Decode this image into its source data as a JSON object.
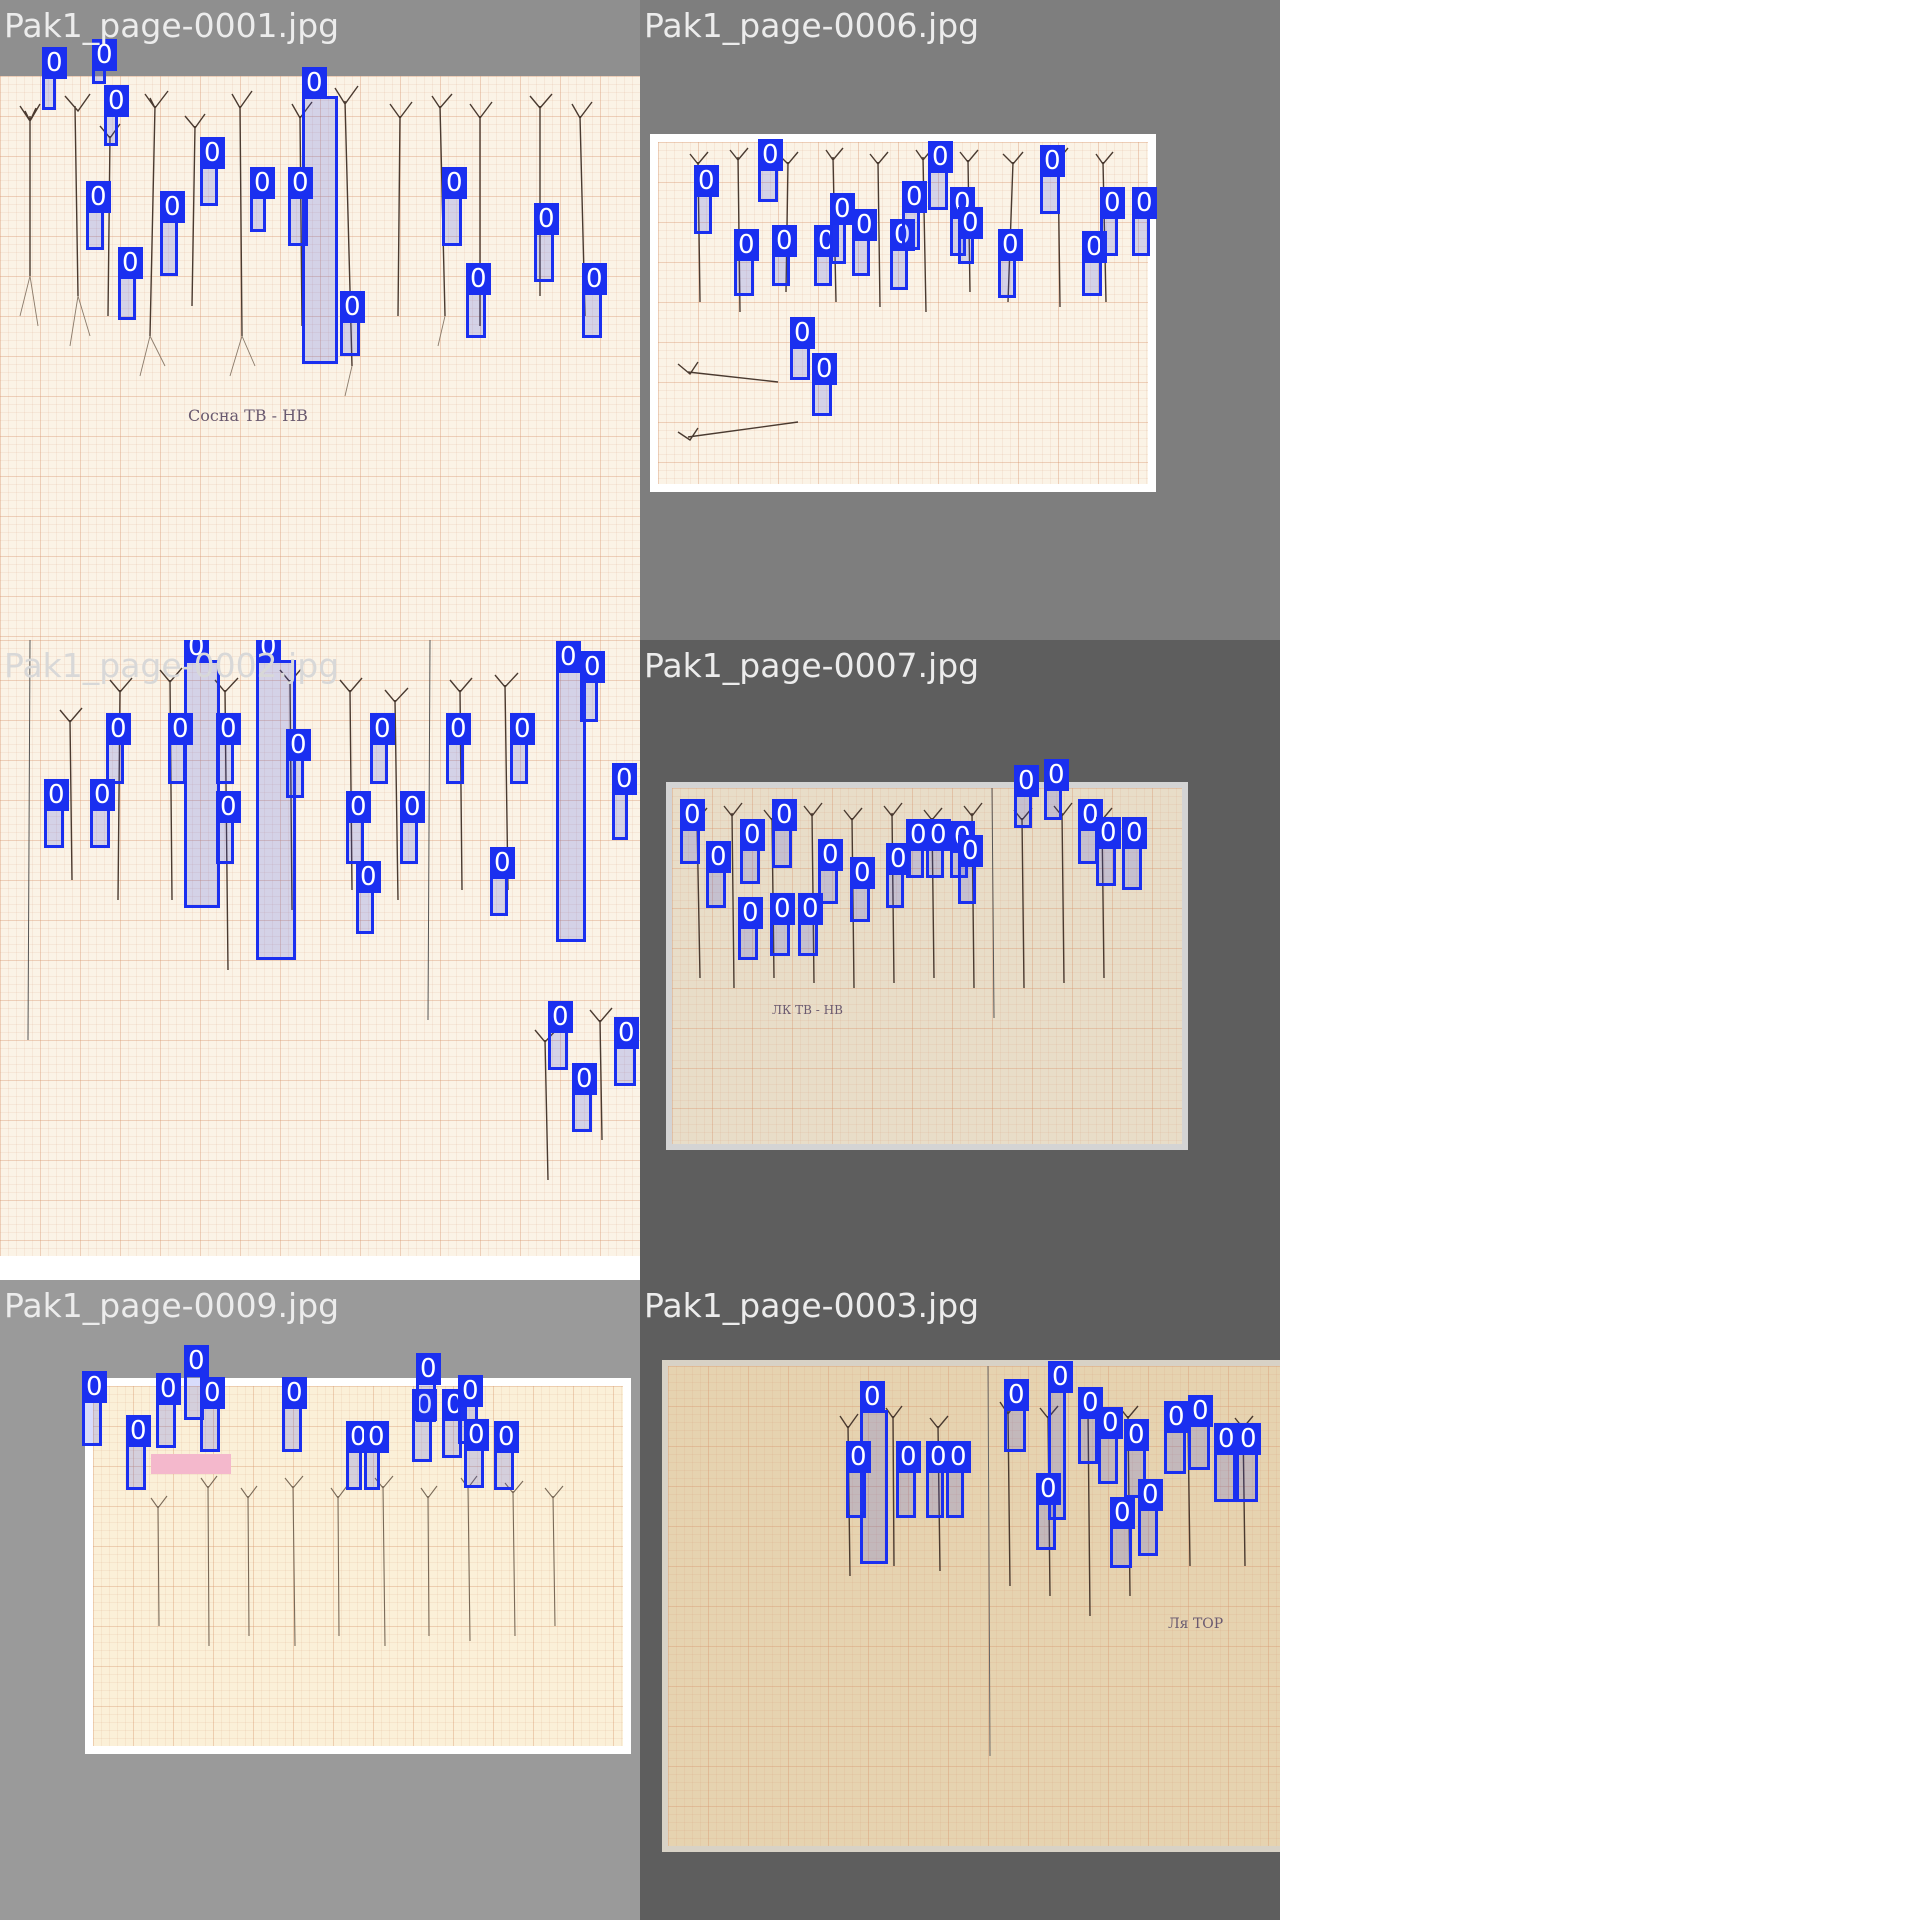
{
  "tiles": [
    {
      "label": "Pak1_page-0001.jpg",
      "background": "#8f8f8f"
    },
    {
      "label": "Pak1_page-0006.jpg",
      "background": "#7e7e7e"
    },
    {
      "label": "Pak1_page-0002.jpg",
      "background": "#ffffff"
    },
    {
      "label": "Pak1_page-0007.jpg",
      "background": "#5e5e5e"
    },
    {
      "label": "Pak1_page-0009.jpg",
      "background": "#9a9a9a"
    },
    {
      "label": "Pak1_page-0003.jpg",
      "background": "#5e5e5e"
    }
  ],
  "detection_class": "0",
  "sheet_notes": {
    "page1": "Сосна ТВ - НВ",
    "page7": "ЛК ТВ - НВ",
    "page3": "Ля ТОР"
  },
  "colors": {
    "box_border": "#1a2ff0",
    "box_fill": "rgba(40,60,240,0.18)",
    "label_text": "#ececec"
  }
}
